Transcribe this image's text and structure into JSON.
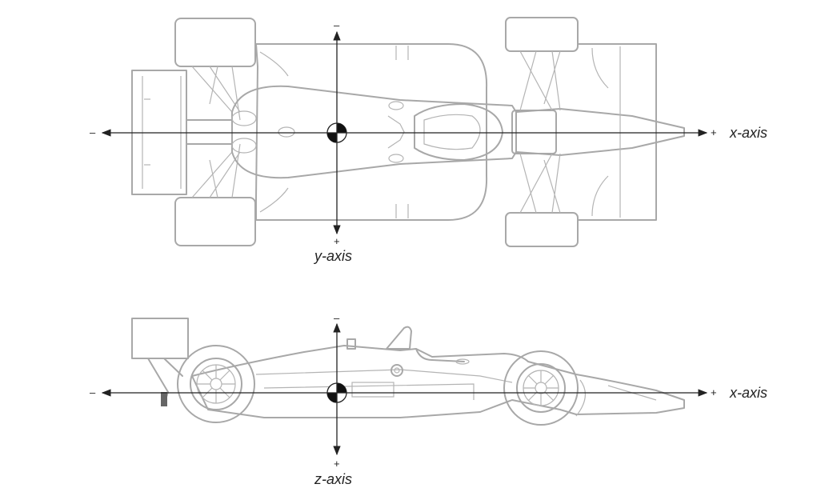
{
  "top_view": {
    "x_axis_label": "x-axis",
    "y_axis_label": "y-axis",
    "x_negative": "–",
    "x_positive": "+",
    "y_negative": "–",
    "y_positive": "+"
  },
  "side_view": {
    "x_axis_label": "x-axis",
    "z_axis_label": "z-axis",
    "x_negative": "–",
    "x_positive": "+",
    "z_negative": "–",
    "z_positive": "+"
  },
  "colors": {
    "outline": "#a8a8a8",
    "axis": "#222222"
  }
}
